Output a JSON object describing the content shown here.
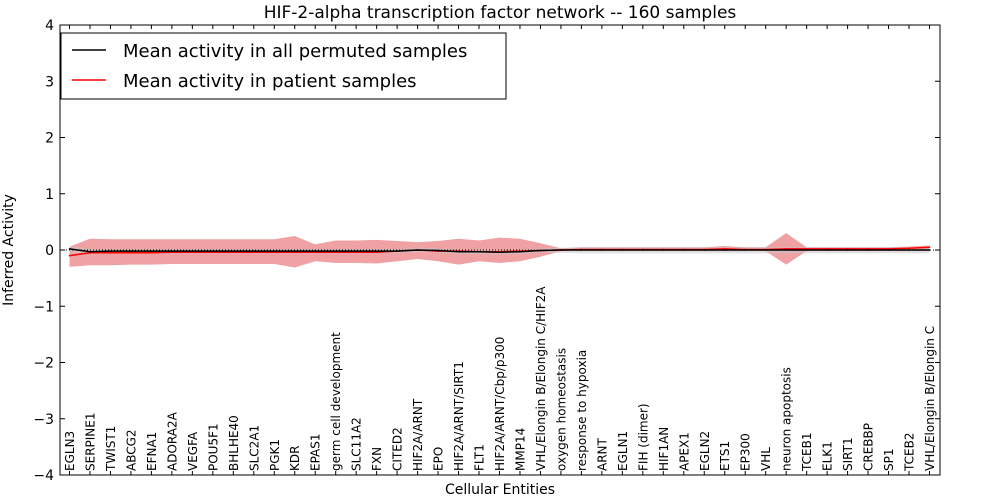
{
  "chart_data": {
    "type": "line",
    "title": "HIF-2-alpha transcription factor network -- 160 samples",
    "xlabel": "Cellular Entities",
    "ylabel": "Inferred Activity",
    "ylim": [
      -4,
      4
    ],
    "yticks": [
      "−4",
      "−3",
      "−2",
      "−1",
      "0",
      "1",
      "2",
      "3",
      "4"
    ],
    "ytick_values": [
      -4,
      -3,
      -2,
      -1,
      0,
      1,
      2,
      3,
      4
    ],
    "grid": false,
    "legend_position": "top-left",
    "categories": [
      "EGLN3",
      "SERPINE1",
      "TWIST1",
      "ABCG2",
      "EFNA1",
      "ADORA2A",
      "VEGFA",
      "POU5F1",
      "BHLHE40",
      "SLC2A1",
      "PGK1",
      "KDR",
      "EPAS1",
      "germ cell development",
      "SLC11A2",
      "FXN",
      "CITED2",
      "HIF2A/ARNT",
      "EPO",
      "HIF2A/ARNT/SIRT1",
      "FLT1",
      "HIF2A/ARNT/Cbp/p300",
      "MMP14",
      "VHL/Elongin B/Elongin C/HIF2A",
      "oxygen homeostasis",
      "response to hypoxia",
      "ARNT",
      "EGLN1",
      "FIH (dimer)",
      "HIF1AN",
      "APEX1",
      "EGLN2",
      "ETS1",
      "EP300",
      "VHL",
      "neuron apoptosis",
      "TCEB1",
      "ELK1",
      "SIRT1",
      "CREBBP",
      "SP1",
      "TCEB2",
      "VHL/Elongin B/Elongin C"
    ],
    "series": [
      {
        "name": "Mean activity in all permuted samples",
        "color": "#000000",
        "values": [
          0.02,
          -0.03,
          -0.02,
          -0.02,
          -0.02,
          -0.02,
          -0.02,
          -0.02,
          -0.02,
          -0.02,
          -0.02,
          -0.02,
          -0.02,
          -0.02,
          -0.02,
          -0.02,
          -0.02,
          0.0,
          -0.01,
          -0.03,
          -0.03,
          -0.04,
          -0.03,
          -0.01,
          0.0,
          0.0,
          0.0,
          0.0,
          0.0,
          0.0,
          0.0,
          0.0,
          0.0,
          0.0,
          0.0,
          0.0,
          0.0,
          0.0,
          0.0,
          0.0,
          0.0,
          0.0,
          0.0
        ],
        "band_lower": [
          -0.04,
          -0.07,
          -0.06,
          -0.06,
          -0.06,
          -0.06,
          -0.06,
          -0.06,
          -0.06,
          -0.06,
          -0.06,
          -0.06,
          -0.06,
          -0.06,
          -0.06,
          -0.06,
          -0.06,
          -0.04,
          -0.05,
          -0.07,
          -0.07,
          -0.08,
          -0.07,
          -0.05,
          -0.05,
          -0.06,
          -0.06,
          -0.06,
          -0.06,
          -0.06,
          -0.06,
          -0.06,
          -0.06,
          -0.06,
          -0.06,
          -0.06,
          -0.06,
          -0.06,
          -0.06,
          -0.06,
          -0.06,
          -0.06,
          -0.06
        ],
        "band_upper": [
          0.07,
          0.02,
          0.02,
          0.02,
          0.02,
          0.02,
          0.02,
          0.02,
          0.02,
          0.02,
          0.02,
          0.02,
          0.02,
          0.02,
          0.02,
          0.02,
          0.02,
          0.04,
          0.03,
          0.01,
          0.01,
          0.0,
          0.01,
          0.03,
          0.04,
          0.05,
          0.05,
          0.05,
          0.05,
          0.05,
          0.05,
          0.05,
          0.05,
          0.05,
          0.05,
          0.05,
          0.05,
          0.05,
          0.05,
          0.05,
          0.05,
          0.05,
          0.05
        ]
      },
      {
        "name": "Mean activity in patient samples",
        "color": "#ff0000",
        "values": [
          -0.1,
          -0.05,
          -0.05,
          -0.05,
          -0.05,
          -0.04,
          -0.04,
          -0.04,
          -0.04,
          -0.04,
          -0.04,
          -0.04,
          -0.04,
          -0.04,
          -0.04,
          -0.04,
          -0.02,
          0.0,
          -0.02,
          -0.02,
          -0.03,
          -0.03,
          -0.02,
          -0.01,
          0.0,
          0.01,
          0.01,
          0.01,
          0.01,
          0.01,
          0.01,
          0.01,
          0.02,
          0.01,
          0.01,
          0.02,
          0.02,
          0.02,
          0.02,
          0.02,
          0.02,
          0.03,
          0.05
        ],
        "band_lower": [
          -0.3,
          -0.27,
          -0.27,
          -0.26,
          -0.26,
          -0.25,
          -0.25,
          -0.25,
          -0.25,
          -0.25,
          -0.25,
          -0.31,
          -0.2,
          -0.23,
          -0.23,
          -0.24,
          -0.2,
          -0.16,
          -0.2,
          -0.26,
          -0.2,
          -0.23,
          -0.2,
          -0.12,
          -0.02,
          -0.02,
          -0.02,
          -0.02,
          -0.02,
          -0.02,
          -0.02,
          -0.02,
          -0.02,
          -0.02,
          -0.02,
          -0.26,
          -0.02,
          -0.02,
          -0.02,
          -0.02,
          -0.02,
          -0.02,
          -0.02
        ],
        "band_upper": [
          0.06,
          0.2,
          0.19,
          0.19,
          0.19,
          0.19,
          0.19,
          0.19,
          0.19,
          0.19,
          0.19,
          0.25,
          0.1,
          0.17,
          0.17,
          0.18,
          0.16,
          0.14,
          0.16,
          0.2,
          0.17,
          0.22,
          0.2,
          0.12,
          0.03,
          0.05,
          0.05,
          0.05,
          0.05,
          0.05,
          0.05,
          0.05,
          0.07,
          0.05,
          0.05,
          0.3,
          0.05,
          0.05,
          0.05,
          0.05,
          0.05,
          0.06,
          0.08
        ]
      }
    ]
  }
}
